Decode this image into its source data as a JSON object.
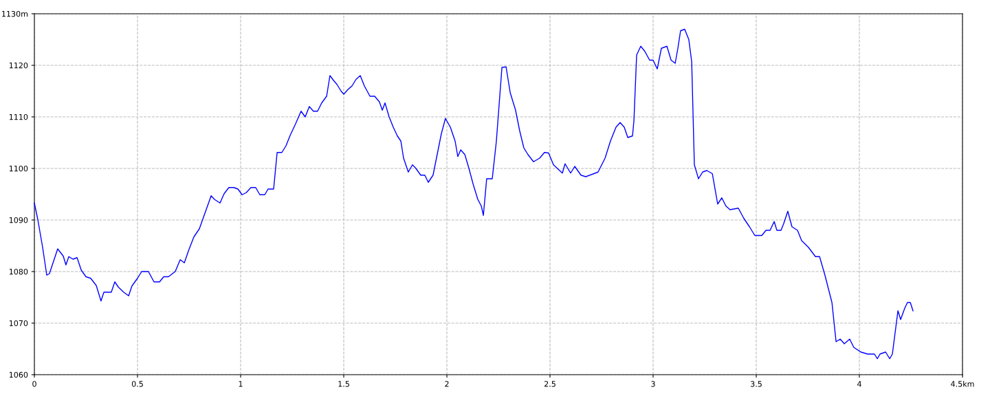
{
  "chart_data": {
    "type": "line",
    "series": [
      {
        "color": "#0000ff",
        "x": [
          0,
          0.017,
          0.04,
          0.06,
          0.073,
          0.093,
          0.113,
          0.14,
          0.153,
          0.167,
          0.187,
          0.207,
          0.227,
          0.25,
          0.273,
          0.3,
          0.323,
          0.337,
          0.373,
          0.39,
          0.407,
          0.433,
          0.457,
          0.473,
          0.5,
          0.52,
          0.553,
          0.58,
          0.607,
          0.627,
          0.65,
          0.683,
          0.707,
          0.727,
          0.747,
          0.773,
          0.8,
          0.833,
          0.857,
          0.873,
          0.9,
          0.92,
          0.943,
          0.967,
          0.987,
          1.007,
          1.027,
          1.05,
          1.073,
          1.093,
          1.117,
          1.133,
          1.16,
          1.177,
          1.2,
          1.22,
          1.24,
          1.267,
          1.293,
          1.313,
          1.333,
          1.353,
          1.373,
          1.393,
          1.417,
          1.433,
          1.45,
          1.467,
          1.487,
          1.5,
          1.52,
          1.54,
          1.56,
          1.58,
          1.6,
          1.627,
          1.65,
          1.673,
          1.687,
          1.7,
          1.72,
          1.74,
          1.76,
          1.777,
          1.79,
          1.813,
          1.833,
          1.85,
          1.873,
          1.893,
          1.91,
          1.933,
          1.953,
          1.973,
          1.993,
          2.017,
          2.04,
          2.053,
          2.067,
          2.087,
          2.107,
          2.127,
          2.15,
          2.167,
          2.177,
          2.193,
          2.22,
          2.24,
          2.267,
          2.287,
          2.307,
          2.333,
          2.353,
          2.373,
          2.393,
          2.42,
          2.45,
          2.473,
          2.493,
          2.517,
          2.56,
          2.573,
          2.6,
          2.62,
          2.65,
          2.673,
          2.707,
          2.733,
          2.767,
          2.793,
          2.82,
          2.84,
          2.86,
          2.877,
          2.9,
          2.907,
          2.92,
          2.94,
          2.96,
          2.983,
          3.0,
          3.02,
          3.04,
          3.067,
          3.087,
          3.107,
          3.12,
          3.133,
          3.153,
          3.173,
          3.187,
          3.2,
          3.22,
          3.24,
          3.26,
          3.287,
          3.313,
          3.333,
          3.353,
          3.373,
          3.413,
          3.44,
          3.467,
          3.493,
          3.527,
          3.547,
          3.567,
          3.587,
          3.6,
          3.62,
          3.633,
          3.653,
          3.673,
          3.7,
          3.72,
          3.753,
          3.787,
          3.807,
          3.833,
          3.867,
          3.887,
          3.907,
          3.927,
          3.953,
          3.973,
          4.007,
          4.04,
          4.073,
          4.087,
          4.1,
          4.127,
          4.147,
          4.16,
          4.187,
          4.2,
          4.22,
          4.233,
          4.247,
          4.26
        ],
        "values": [
          1093.3,
          1090,
          1084.7,
          1079.3,
          1079.6,
          1082,
          1084.4,
          1083,
          1081.3,
          1082.9,
          1082.4,
          1082.7,
          1080.3,
          1079,
          1078.7,
          1077.3,
          1074.3,
          1076,
          1076,
          1078,
          1077,
          1076,
          1075.3,
          1077.2,
          1078.7,
          1080,
          1080,
          1078,
          1078,
          1079,
          1079,
          1080,
          1082.3,
          1081.7,
          1084,
          1086.7,
          1088.3,
          1092,
          1094.7,
          1094,
          1093.3,
          1095.1,
          1096.3,
          1096.3,
          1096,
          1094.9,
          1095.3,
          1096.3,
          1096.3,
          1094.9,
          1094.9,
          1096,
          1096,
          1103.1,
          1103.1,
          1104.4,
          1106.4,
          1108.7,
          1111.1,
          1110,
          1112,
          1111.1,
          1111.1,
          1112.7,
          1114,
          1118,
          1117.1,
          1116.3,
          1115,
          1114.4,
          1115.3,
          1116,
          1117.3,
          1118,
          1116,
          1114,
          1114,
          1112.9,
          1111.3,
          1112.7,
          1110,
          1108,
          1106.3,
          1105.3,
          1102,
          1099.3,
          1100.7,
          1100,
          1098.7,
          1098.7,
          1097.3,
          1098.7,
          1102.7,
          1106.7,
          1109.7,
          1108,
          1105.3,
          1102.3,
          1103.6,
          1102.7,
          1100,
          1097,
          1094,
          1092.7,
          1090.9,
          1098,
          1098,
          1105.3,
          1119.6,
          1119.7,
          1114.7,
          1111.3,
          1107.3,
          1104,
          1102.7,
          1101.3,
          1102,
          1103.1,
          1103,
          1100.7,
          1099.1,
          1100.9,
          1099.1,
          1100.4,
          1098.7,
          1098.4,
          1098.9,
          1099.3,
          1102,
          1105.3,
          1108,
          1108.9,
          1108,
          1106,
          1106.3,
          1109.3,
          1122,
          1123.7,
          1122.7,
          1121,
          1121,
          1119.3,
          1123.3,
          1123.7,
          1121,
          1120.4,
          1123.3,
          1126.7,
          1127,
          1125,
          1120.7,
          1100.7,
          1098,
          1099.3,
          1099.6,
          1099,
          1093.1,
          1094.3,
          1092.7,
          1092,
          1092.3,
          1090.3,
          1088.7,
          1087,
          1087,
          1088,
          1088,
          1089.7,
          1088,
          1088,
          1089.3,
          1091.7,
          1088.7,
          1088,
          1086,
          1084.7,
          1082.9,
          1082.9,
          1079.3,
          1074,
          1066.4,
          1066.9,
          1066,
          1066.9,
          1065.3,
          1064.4,
          1064,
          1064,
          1063.1,
          1064,
          1064.4,
          1063.1,
          1064,
          1072.4,
          1070.7,
          1072.9,
          1074,
          1074,
          1072.4
        ]
      }
    ],
    "xlim": [
      0,
      4.5
    ],
    "xticks": [
      0,
      0.5,
      1,
      1.5,
      2,
      2.5,
      3,
      3.5,
      4,
      {
        "value": 4.5,
        "label": "4.5km"
      }
    ],
    "ylim": [
      1060,
      1130
    ],
    "yticks": [
      1060,
      1070,
      1080,
      1090,
      1100,
      1110,
      1120,
      {
        "value": 1130,
        "label": "1130m"
      }
    ],
    "grid": true,
    "line_style": "solid"
  }
}
